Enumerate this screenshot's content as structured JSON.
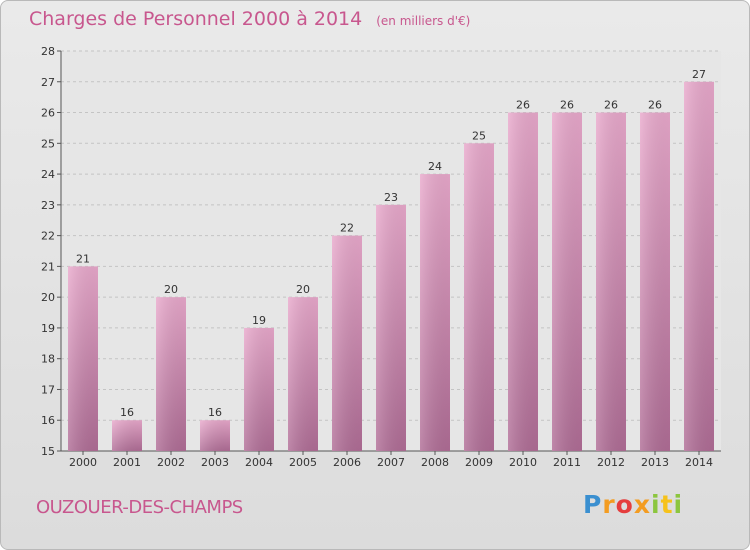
{
  "header": {
    "title": "Charges de Personnel 2000 à 2014",
    "unit": "(en milliers d'€)"
  },
  "footer": {
    "commune": "OUZOUER-DES-CHAMPS",
    "logo": "Proxiti"
  },
  "colors": {
    "accent": "#c8578e",
    "bar_light": "#e9a9cc",
    "bar_dark": "#b5709a"
  },
  "chart_data": {
    "type": "bar",
    "categories": [
      "2000",
      "2001",
      "2002",
      "2003",
      "2004",
      "2005",
      "2006",
      "2007",
      "2008",
      "2009",
      "2010",
      "2011",
      "2012",
      "2013",
      "2014"
    ],
    "values": [
      21,
      16,
      20,
      16,
      19,
      20,
      22,
      23,
      24,
      25,
      26,
      26,
      26,
      26,
      27
    ],
    "ylim": [
      15,
      28
    ],
    "yticks": [
      15,
      16,
      17,
      18,
      19,
      20,
      21,
      22,
      23,
      24,
      25,
      26,
      27,
      28
    ],
    "grid": true,
    "legend": "none"
  }
}
